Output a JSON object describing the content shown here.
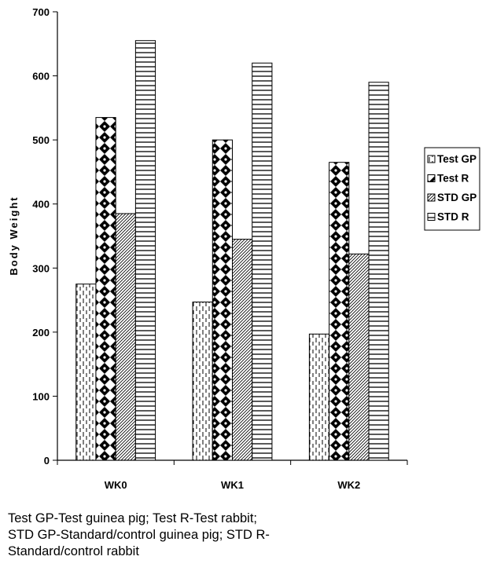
{
  "chart_data": {
    "type": "bar",
    "title": "",
    "xlabel": "",
    "ylabel": "Body Weight",
    "ylim": [
      0,
      700
    ],
    "yticks": [
      0,
      100,
      200,
      300,
      400,
      500,
      600,
      700
    ],
    "categories": [
      "WK0",
      "WK1",
      "WK2"
    ],
    "series": [
      {
        "name": "Test GP",
        "values": [
          275,
          247,
          197
        ],
        "pattern": "dashed-vertical"
      },
      {
        "name": "Test R",
        "values": [
          535,
          500,
          465
        ],
        "pattern": "black-diamonds"
      },
      {
        "name": "STD GP",
        "values": [
          385,
          345,
          322
        ],
        "pattern": "diagonal-hatch"
      },
      {
        "name": "STD R",
        "values": [
          655,
          620,
          590
        ],
        "pattern": "horizontal-lines"
      }
    ],
    "legend_position": "right",
    "grid": false
  },
  "caption_lines": [
    "Test GP-Test guinea pig; Test R-Test rabbit;",
    "STD GP-Standard/control guinea pig; STD R-",
    "Standard/control rabbit"
  ]
}
